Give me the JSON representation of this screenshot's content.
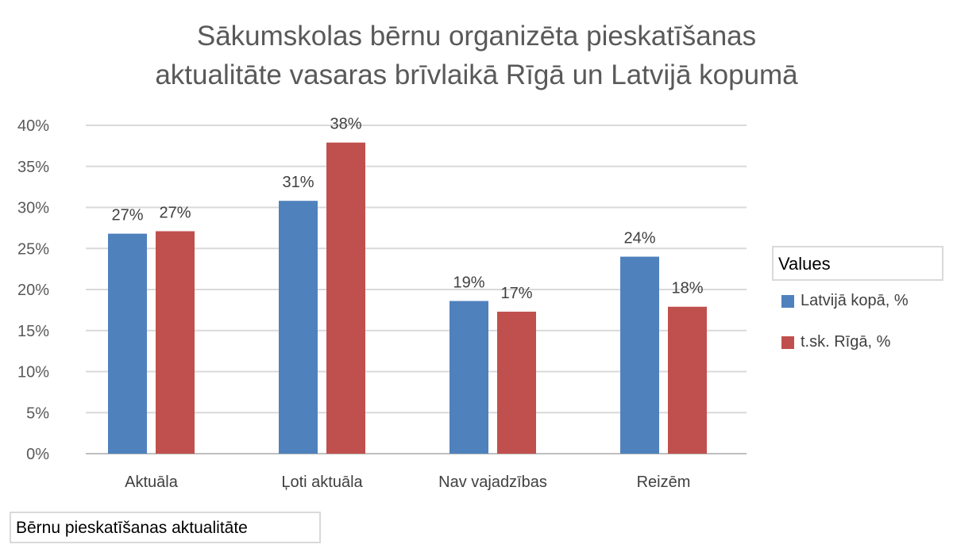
{
  "colors": {
    "series1": "#4f81bd",
    "series2": "#c0504d",
    "grid": "#d9d9d9",
    "text": "#595959"
  },
  "legend": {
    "title": "Values",
    "items": [
      "Latvijā kopā, %",
      "t.sk. Rīgā, %"
    ]
  },
  "field_button": "Bērnu pieskatīšanas aktualitāte",
  "chart_data": {
    "type": "bar",
    "title_lines": [
      "Sākumskolas bērnu organizēta pieskatīšanas",
      "aktualitāte vasaras brīvlaikā Rīgā un Latvijā kopumā"
    ],
    "categories": [
      "Aktuāla",
      "Ļoti aktuāla",
      "Nav vajadzības",
      "Reizēm"
    ],
    "series": [
      {
        "name": "Latvijā kopā, %",
        "values": [
          26.8,
          30.8,
          18.6,
          24.0
        ],
        "labels": [
          "27%",
          "31%",
          "19%",
          "24%"
        ]
      },
      {
        "name": "t.sk. Rīgā, %",
        "values": [
          27.1,
          37.9,
          17.3,
          17.9
        ],
        "labels": [
          "27%",
          "38%",
          "17%",
          "18%"
        ]
      }
    ],
    "yticks": [
      "0%",
      "5%",
      "10%",
      "15%",
      "20%",
      "25%",
      "30%",
      "35%",
      "40%"
    ],
    "ylim": [
      0,
      40
    ],
    "grid": true,
    "legend_position": "right"
  }
}
